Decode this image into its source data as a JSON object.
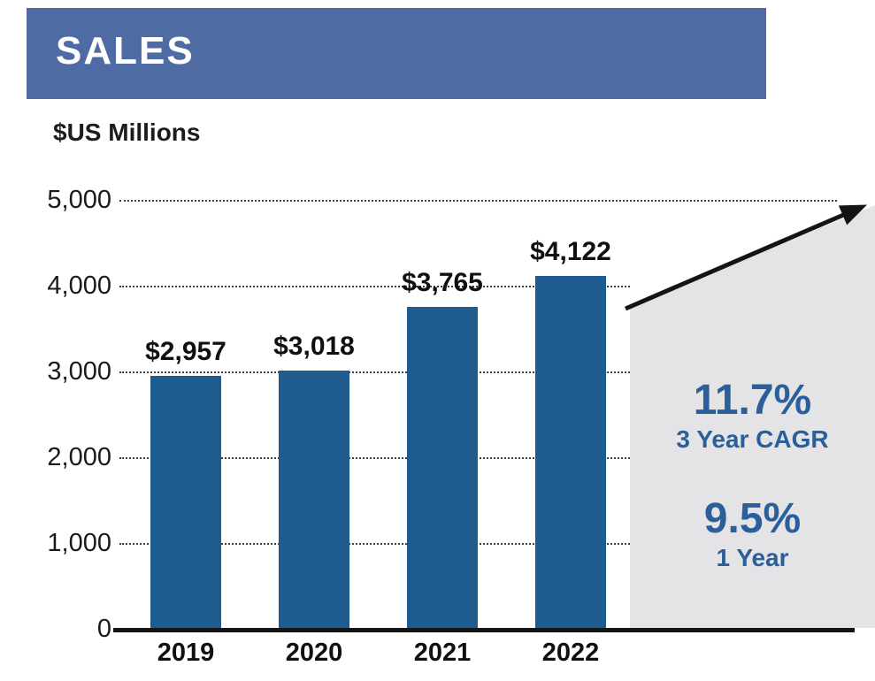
{
  "header": {
    "title": "SALES"
  },
  "chart_data": {
    "type": "bar",
    "title": "SALES",
    "ylabel": "$US Millions",
    "xlabel": "",
    "categories": [
      "2019",
      "2020",
      "2021",
      "2022"
    ],
    "values": [
      2957,
      3018,
      3765,
      4122
    ],
    "value_labels": [
      "$2,957",
      "$3,018",
      "$3,765",
      "$4,122"
    ],
    "ylim": [
      0,
      5000
    ],
    "yticks": [
      {
        "value": 0,
        "label": "0"
      },
      {
        "value": 1000,
        "label": "1,000"
      },
      {
        "value": 2000,
        "label": "2,000"
      },
      {
        "value": 3000,
        "label": "3,000"
      },
      {
        "value": 4000,
        "label": "4,000"
      },
      {
        "value": 5000,
        "label": "5,000"
      }
    ],
    "grid": "horizontal-dotted",
    "legend": "none",
    "bar_color": "#1e5b8f",
    "header_band_color": "#4e6ba4",
    "shaded_region_color": "#e4e4e6",
    "arrow_color": "#141414",
    "annotations": {
      "cagr_value": "11.7%",
      "cagr_label": "3 Year CAGR",
      "one_year_value": "9.5%",
      "one_year_label": "1 Year",
      "text_color": "#2b5f9b",
      "trend_arrow": "up-right"
    }
  }
}
